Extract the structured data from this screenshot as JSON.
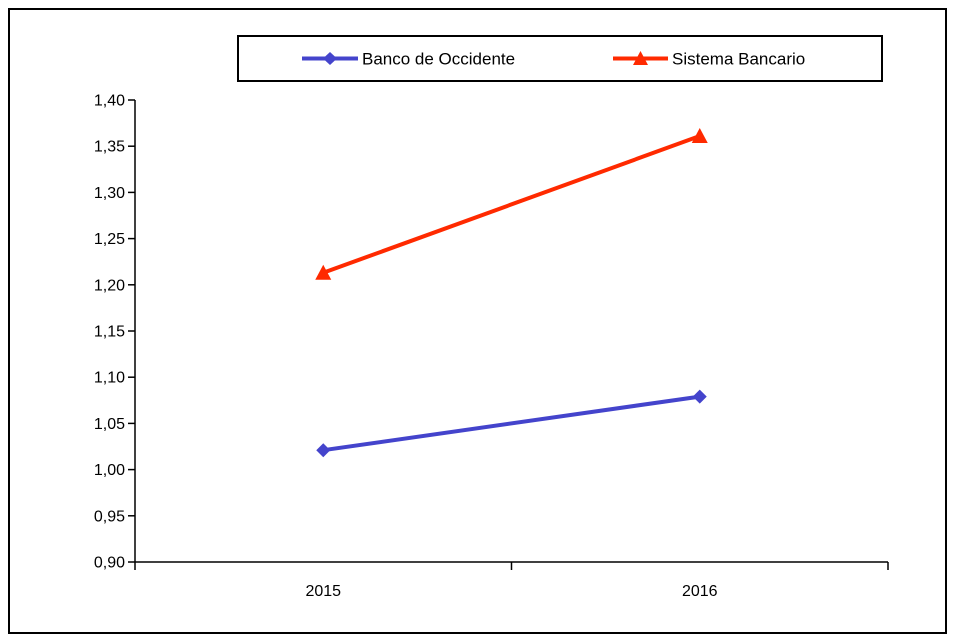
{
  "chart_data": {
    "type": "line",
    "categories": [
      "2015",
      "2016"
    ],
    "series": [
      {
        "name": "Banco de Occidente",
        "values": [
          1.021,
          1.079
        ],
        "color": "#4444cc",
        "marker": "diamond"
      },
      {
        "name": "Sistema Bancario",
        "values": [
          1.213,
          1.361
        ],
        "color": "#ff2a00",
        "marker": "triangle"
      }
    ],
    "y_ticks": [
      "1,40",
      "1,35",
      "1,30",
      "1,25",
      "1,20",
      "1,15",
      "1,10",
      "1,05",
      "1,00",
      "0,95",
      "0,90"
    ],
    "ylim": [
      0.9,
      1.4
    ],
    "legend_position": "top",
    "grid": false
  }
}
